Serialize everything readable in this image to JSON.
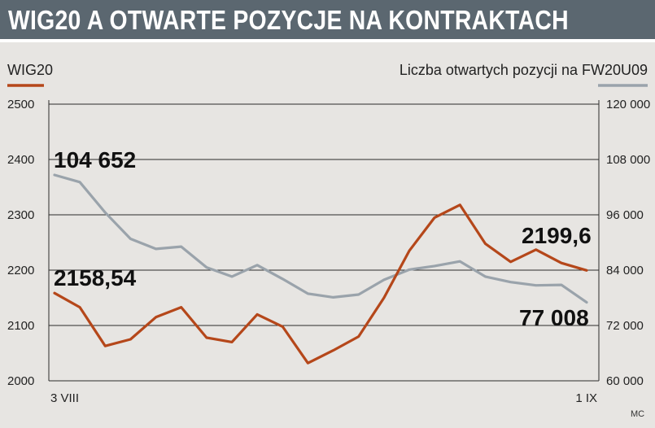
{
  "header": {
    "title": "WIG20 A OTWARTE POZYCJE NA KONTRAKTACH"
  },
  "credit": "MC",
  "colors": {
    "wig20": "#b5471a",
    "open_positions": "#9aa3ab",
    "title_bg": "#5b6770",
    "panel_bg": "#e7e5e2"
  },
  "chart_data": {
    "type": "line",
    "title": "WIG20 A OTWARTE POZYCJE NA KONTRAKTACH",
    "x_tick_labels": [
      "3 VIII",
      "1 IX"
    ],
    "left_axis": {
      "label": "WIG20",
      "range": [
        2000,
        2500
      ],
      "ticks": [
        2000,
        2100,
        2200,
        2300,
        2400,
        2500
      ],
      "tick_labels": [
        "2000",
        "2100",
        "2200",
        "2300",
        "2400",
        "2500"
      ]
    },
    "right_axis": {
      "label": "Liczba otwartych pozycji na FW20U09",
      "range": [
        60000,
        120000
      ],
      "ticks": [
        60000,
        72000,
        84000,
        96000,
        108000,
        120000
      ],
      "tick_labels": [
        "60 000",
        "72 000",
        "84 000",
        "96 000",
        "108 000",
        "120 000"
      ]
    },
    "grid": true,
    "series": [
      {
        "name": "WIG20",
        "axis": "left",
        "color": "#b5471a",
        "values": [
          2158.54,
          2133,
          2063,
          2075,
          2115,
          2133,
          2078,
          2070,
          2120,
          2098,
          2032,
          2055,
          2080,
          2150,
          2235,
          2295,
          2318,
          2248,
          2215,
          2237,
          2213,
          2199.6
        ]
      },
      {
        "name": "Liczba otwartych pozycji na FW20U09",
        "axis": "right",
        "color": "#9aa3ab",
        "values": [
          104652,
          103100,
          96500,
          90800,
          88600,
          89100,
          84600,
          82600,
          85100,
          82100,
          78900,
          78100,
          78700,
          81900,
          84100,
          84900,
          85900,
          82600,
          81400,
          80700,
          80800,
          77008
        ]
      }
    ],
    "annotations": [
      {
        "text": "104 652",
        "series": 1,
        "point": 0
      },
      {
        "text": "2158,54",
        "series": 0,
        "point": 0
      },
      {
        "text": "2199,6",
        "series": 0,
        "point": 21
      },
      {
        "text": "77 008",
        "series": 1,
        "point": 21
      }
    ]
  }
}
